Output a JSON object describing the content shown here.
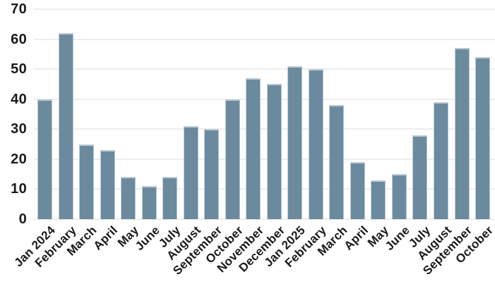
{
  "chart_data": {
    "type": "bar",
    "title": "",
    "xlabel": "",
    "ylabel": "",
    "categories": [
      "Jan 2024",
      "February",
      "March",
      "April",
      "May",
      "June",
      "July",
      "August",
      "September",
      "October",
      "November",
      "December",
      "Jan 2025",
      "February",
      "March",
      "April",
      "May",
      "June",
      "July",
      "August",
      "September",
      "October"
    ],
    "values": [
      40,
      62,
      25,
      23,
      14,
      11,
      14,
      31,
      30,
      40,
      47,
      45,
      51,
      50,
      38,
      19,
      13,
      15,
      28,
      39,
      57,
      54
    ],
    "ylim": [
      0,
      70
    ],
    "yticks": [
      0,
      10,
      20,
      30,
      40,
      50,
      60,
      70
    ],
    "grid": true,
    "legend": "none",
    "colors": {
      "bar_fill": "#6b8a9e",
      "bar_border": "#bcc9d3",
      "gridline": "#ededed",
      "tick_text": "#1a1a1a",
      "background": "#ffffff"
    }
  }
}
